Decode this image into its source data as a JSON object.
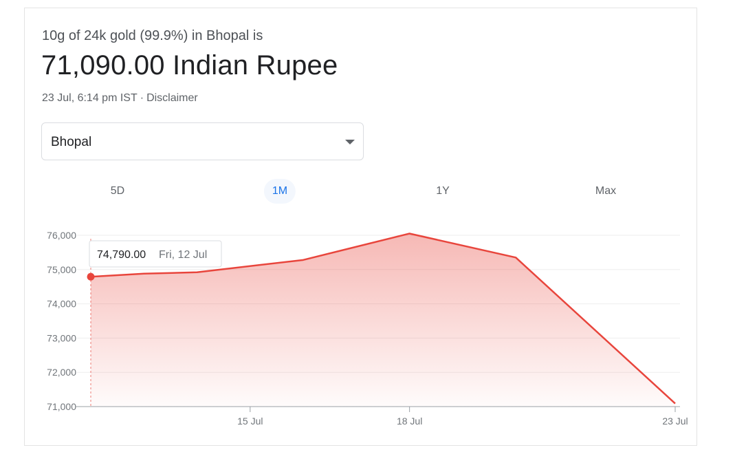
{
  "header": {
    "subtitle": "10g of 24k gold (99.9%) in Bhopal is",
    "price": "71,090.00 Indian Rupee",
    "timestamp": "23 Jul, 6:14 pm IST",
    "separator": "·",
    "disclaimer": "Disclaimer"
  },
  "location_select": {
    "value": "Bhopal"
  },
  "tabs": [
    {
      "label": "5D",
      "active": false
    },
    {
      "label": "1M",
      "active": true
    },
    {
      "label": "1Y",
      "active": false
    },
    {
      "label": "Max",
      "active": false
    }
  ],
  "tooltip": {
    "value": "74,790.00",
    "date": "Fri, 12 Jul"
  },
  "colors": {
    "line": "#e8453c",
    "active_tab": "#1a73e8"
  },
  "chart_data": {
    "type": "area",
    "title": "",
    "xlabel": "",
    "ylabel": "",
    "x_ticks": [
      "15 Jul",
      "18 Jul",
      "23 Jul"
    ],
    "y_ticks": [
      "71,000",
      "72,000",
      "73,000",
      "74,000",
      "75,000",
      "76,000"
    ],
    "ylim": [
      71000,
      76200
    ],
    "xlim": [
      "12 Jul",
      "23 Jul"
    ],
    "grid": true,
    "series": [
      {
        "x": [
          "12 Jul",
          "13 Jul",
          "14 Jul",
          "16 Jul",
          "18 Jul",
          "20 Jul",
          "23 Jul"
        ],
        "values": [
          74790,
          74880,
          74920,
          75280,
          76050,
          75350,
          71090
        ]
      }
    ]
  }
}
